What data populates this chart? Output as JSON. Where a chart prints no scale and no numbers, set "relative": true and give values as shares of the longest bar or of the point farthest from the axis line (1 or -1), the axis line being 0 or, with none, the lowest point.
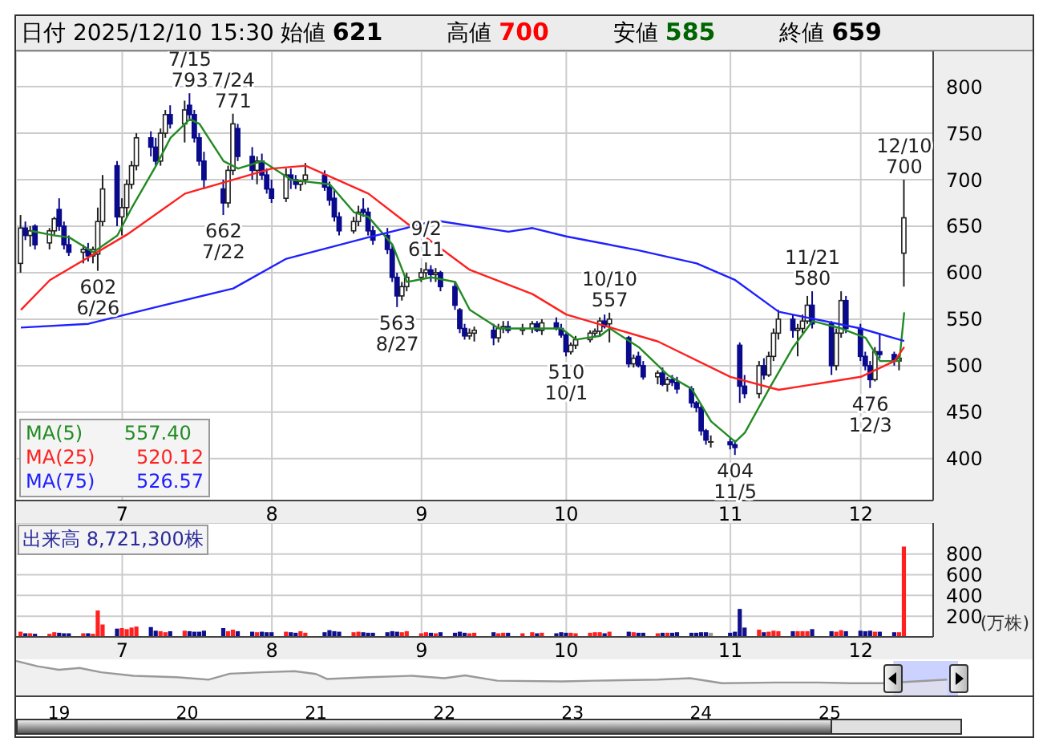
{
  "chart_data": [
    {
      "type": "candlestick",
      "title": "日付 2025/12/10 15:30",
      "legend": "bottom left",
      "grid": true,
      "x": [
        "2025-06-10",
        "2025-06-11",
        "2025-06-12",
        "2025-06-13",
        "2025-06-16",
        "2025-06-17",
        "2025-06-18",
        "2025-06-19",
        "2025-06-20",
        "2025-06-23",
        "2025-06-24",
        "2025-06-25",
        "2025-06-26",
        "2025-06-27",
        "2025-06-30",
        "2025-07-01",
        "2025-07-02",
        "2025-07-03",
        "2025-07-04",
        "2025-07-07",
        "2025-07-08",
        "2025-07-09",
        "2025-07-10",
        "2025-07-11",
        "2025-07-14",
        "2025-07-15",
        "2025-07-16",
        "2025-07-17",
        "2025-07-18",
        "2025-07-22",
        "2025-07-23",
        "2025-07-24",
        "2025-07-25",
        "2025-07-28",
        "2025-07-29",
        "2025-07-30",
        "2025-07-31",
        "2025-08-01",
        "2025-08-04",
        "2025-08-05",
        "2025-08-06",
        "2025-08-07",
        "2025-08-08",
        "2025-08-12",
        "2025-08-13",
        "2025-08-14",
        "2025-08-15",
        "2025-08-18",
        "2025-08-19",
        "2025-08-20",
        "2025-08-21",
        "2025-08-22",
        "2025-08-25",
        "2025-08-26",
        "2025-08-27",
        "2025-08-28",
        "2025-08-29",
        "2025-09-01",
        "2025-09-02",
        "2025-09-03",
        "2025-09-04",
        "2025-09-05",
        "2025-09-08",
        "2025-09-09",
        "2025-09-10",
        "2025-09-11",
        "2025-09-12",
        "2025-09-16",
        "2025-09-17",
        "2025-09-18",
        "2025-09-19",
        "2025-09-22",
        "2025-09-24",
        "2025-09-25",
        "2025-09-26",
        "2025-09-29",
        "2025-09-30",
        "2025-10-01",
        "2025-10-02",
        "2025-10-03",
        "2025-10-06",
        "2025-10-07",
        "2025-10-08",
        "2025-10-09",
        "2025-10-10",
        "2025-10-14",
        "2025-10-15",
        "2025-10-16",
        "2025-10-17",
        "2025-10-20",
        "2025-10-21",
        "2025-10-22",
        "2025-10-23",
        "2025-10-24",
        "2025-10-27",
        "2025-10-28",
        "2025-10-29",
        "2025-10-30",
        "2025-10-31",
        "2025-11-04",
        "2025-11-05",
        "2025-11-06",
        "2025-11-07",
        "2025-11-10",
        "2025-11-11",
        "2025-11-12",
        "2025-11-13",
        "2025-11-14",
        "2025-11-17",
        "2025-11-18",
        "2025-11-19",
        "2025-11-20",
        "2025-11-21",
        "2025-11-25",
        "2025-11-26",
        "2025-11-27",
        "2025-11-28",
        "2025-12-01",
        "2025-12-02",
        "2025-12-03",
        "2025-12-04",
        "2025-12-05",
        "2025-12-08",
        "2025-12-09",
        "2025-12-10"
      ],
      "ohlc": [
        [
          610,
          662,
          600,
          648
        ],
        [
          648,
          655,
          635,
          640
        ],
        [
          640,
          650,
          628,
          645
        ],
        [
          650,
          652,
          625,
          630
        ],
        [
          632,
          648,
          625,
          645
        ],
        [
          645,
          660,
          640,
          658
        ],
        [
          668,
          680,
          645,
          650
        ],
        [
          650,
          655,
          625,
          630
        ],
        [
          630,
          640,
          618,
          622
        ],
        [
          622,
          630,
          610,
          625
        ],
        [
          625,
          632,
          612,
          618
        ],
        [
          618,
          628,
          610,
          625
        ],
        [
          620,
          670,
          602,
          655
        ],
        [
          655,
          705,
          650,
          690
        ],
        [
          715,
          720,
          650,
          660
        ],
        [
          660,
          680,
          640,
          670
        ],
        [
          670,
          700,
          660,
          695
        ],
        [
          695,
          720,
          690,
          715
        ],
        [
          715,
          750,
          710,
          745
        ],
        [
          745,
          752,
          725,
          735
        ],
        [
          735,
          745,
          715,
          720
        ],
        [
          720,
          755,
          715,
          750
        ],
        [
          750,
          775,
          745,
          770
        ],
        [
          770,
          780,
          755,
          760
        ],
        [
          760,
          785,
          740,
          775
        ],
        [
          780,
          793,
          765,
          770
        ],
        [
          770,
          775,
          740,
          745
        ],
        [
          745,
          750,
          715,
          720
        ],
        [
          720,
          730,
          690,
          700
        ],
        [
          690,
          700,
          662,
          675
        ],
        [
          675,
          715,
          670,
          710
        ],
        [
          710,
          771,
          705,
          760
        ],
        [
          755,
          760,
          720,
          725
        ],
        [
          725,
          735,
          700,
          710
        ],
        [
          710,
          725,
          695,
          720
        ],
        [
          720,
          728,
          700,
          705
        ],
        [
          705,
          712,
          685,
          690
        ],
        [
          690,
          700,
          675,
          680
        ],
        [
          680,
          712,
          676,
          705
        ],
        [
          705,
          712,
          690,
          700
        ],
        [
          700,
          705,
          690,
          695
        ],
        [
          695,
          700,
          688,
          698
        ],
        [
          700,
          718,
          695,
          705
        ],
        [
          705,
          710,
          688,
          692
        ],
        [
          692,
          698,
          672,
          678
        ],
        [
          680,
          690,
          655,
          660
        ],
        [
          660,
          665,
          640,
          645
        ],
        [
          645,
          660,
          642,
          655
        ],
        [
          655,
          672,
          650,
          665
        ],
        [
          668,
          680,
          660,
          665
        ],
        [
          665,
          670,
          640,
          645
        ],
        [
          645,
          650,
          630,
          635
        ],
        [
          640,
          648,
          620,
          625
        ],
        [
          625,
          630,
          590,
          595
        ],
        [
          595,
          600,
          563,
          575
        ],
        [
          575,
          590,
          570,
          585
        ],
        [
          585,
          600,
          580,
          595
        ],
        [
          595,
          605,
          590,
          600
        ],
        [
          600,
          611,
          595,
          603
        ],
        [
          603,
          608,
          590,
          598
        ],
        [
          598,
          605,
          590,
          600
        ],
        [
          600,
          602,
          580,
          585
        ],
        [
          585,
          590,
          560,
          565
        ],
        [
          560,
          562,
          535,
          540
        ],
        [
          540,
          545,
          528,
          532
        ],
        [
          532,
          540,
          528,
          535
        ],
        [
          535,
          542,
          526,
          538
        ],
        [
          538,
          545,
          522,
          530
        ],
        [
          530,
          545,
          525,
          540
        ],
        [
          540,
          548,
          535,
          542
        ],
        [
          542,
          548,
          535,
          538
        ],
        [
          538,
          545,
          533,
          540
        ],
        [
          540,
          548,
          535,
          545
        ],
        [
          545,
          548,
          536,
          538
        ],
        [
          538,
          550,
          533,
          546
        ],
        [
          546,
          552,
          538,
          540
        ],
        [
          540,
          545,
          530,
          533
        ],
        [
          533,
          535,
          510,
          515
        ],
        [
          515,
          525,
          512,
          522
        ],
        [
          522,
          532,
          518,
          528
        ],
        [
          528,
          538,
          525,
          535
        ],
        [
          535,
          540,
          530,
          537
        ],
        [
          537,
          552,
          532,
          548
        ],
        [
          548,
          555,
          540,
          542
        ],
        [
          545,
          557,
          525,
          550
        ],
        [
          530,
          532,
          498,
          502
        ],
        [
          502,
          512,
          498,
          508
        ],
        [
          510,
          515,
          498,
          500
        ],
        [
          500,
          505,
          485,
          488
        ],
        [
          488,
          495,
          480,
          492
        ],
        [
          492,
          498,
          478,
          480
        ],
        [
          480,
          488,
          472,
          485
        ],
        [
          485,
          490,
          478,
          482
        ],
        [
          482,
          488,
          470,
          475
        ],
        [
          475,
          478,
          455,
          460
        ],
        [
          460,
          462,
          450,
          455
        ],
        [
          455,
          458,
          425,
          430
        ],
        [
          430,
          432,
          415,
          420
        ],
        [
          418,
          425,
          412,
          418
        ],
        [
          418,
          422,
          410,
          415
        ],
        [
          415,
          420,
          404,
          412
        ],
        [
          522,
          525,
          460,
          478
        ],
        [
          478,
          490,
          465,
          470
        ],
        [
          470,
          505,
          465,
          500
        ],
        [
          500,
          508,
          485,
          490
        ],
        [
          490,
          515,
          488,
          510
        ],
        [
          510,
          540,
          505,
          535
        ],
        [
          535,
          560,
          528,
          550
        ],
        [
          550,
          555,
          530,
          538
        ],
        [
          538,
          545,
          510,
          540
        ],
        [
          540,
          555,
          535,
          548
        ],
        [
          548,
          575,
          545,
          565
        ],
        [
          565,
          580,
          540,
          545
        ],
        [
          545,
          548,
          490,
          500
        ],
        [
          500,
          540,
          495,
          535
        ],
        [
          535,
          580,
          530,
          570
        ],
        [
          570,
          575,
          535,
          540
        ],
        [
          540,
          545,
          505,
          510
        ],
        [
          510,
          515,
          495,
          500
        ],
        [
          500,
          505,
          476,
          485
        ],
        [
          485,
          520,
          483,
          515
        ],
        [
          515,
          535,
          508,
          512
        ],
        [
          512,
          515,
          500,
          505
        ],
        [
          505,
          512,
          495,
          508
        ],
        [
          621,
          700,
          585,
          659
        ]
      ],
      "series": [
        {
          "name": "MA(5) 557.40",
          "type": "line",
          "color": "#228b22",
          "x": [
            "2025-06-12",
            "2025-06-17",
            "2025-06-20",
            "2025-06-25",
            "2025-06-30",
            "2025-07-03",
            "2025-07-08",
            "2025-07-11",
            "2025-07-15",
            "2025-07-17",
            "2025-07-22",
            "2025-07-25",
            "2025-07-30",
            "2025-08-05",
            "2025-08-08",
            "2025-08-13",
            "2025-08-18",
            "2025-08-21",
            "2025-08-26",
            "2025-08-29",
            "2025-09-03",
            "2025-09-08",
            "2025-09-11",
            "2025-09-17",
            "2025-09-24",
            "2025-09-30",
            "2025-10-03",
            "2025-10-08",
            "2025-10-10",
            "2025-10-16",
            "2025-10-22",
            "2025-10-27",
            "2025-10-31",
            "2025-11-05",
            "2025-11-07",
            "2025-11-12",
            "2025-11-17",
            "2025-11-21",
            "2025-11-27",
            "2025-12-02",
            "2025-12-05",
            "2025-12-09",
            "2025-12-10"
          ],
          "values": [
            645,
            640,
            638,
            622,
            640,
            670,
            715,
            745,
            765,
            760,
            720,
            712,
            720,
            700,
            698,
            695,
            665,
            660,
            630,
            590,
            595,
            590,
            560,
            540,
            540,
            540,
            528,
            532,
            540,
            520,
            490,
            475,
            440,
            418,
            428,
            475,
            520,
            548,
            540,
            530,
            505,
            505,
            557.4
          ]
        },
        {
          "name": "MA(25) 520.12",
          "type": "line",
          "color": "#ff2020",
          "x": [
            "2025-06-10",
            "2025-06-16",
            "2025-07-02",
            "2025-07-14",
            "2025-08-01",
            "2025-08-08",
            "2025-08-21",
            "2025-08-29",
            "2025-09-11",
            "2025-09-24",
            "2025-10-01",
            "2025-10-20",
            "2025-11-04",
            "2025-11-14",
            "2025-12-01",
            "2025-12-08",
            "2025-12-10"
          ],
          "values": [
            560,
            592,
            641,
            685,
            712,
            715,
            685,
            653,
            603,
            577,
            555,
            526,
            488,
            474,
            488,
            505,
            520.12
          ]
        },
        {
          "name": "MA(75) 526.57",
          "type": "line",
          "color": "#2020ff",
          "x": [
            "2025-06-10",
            "2025-06-24",
            "2025-07-08",
            "2025-07-24",
            "2025-08-04",
            "2025-08-21",
            "2025-09-04",
            "2025-09-19",
            "2025-09-24",
            "2025-10-01",
            "2025-10-16",
            "2025-10-28",
            "2025-11-05",
            "2025-11-14",
            "2025-12-01",
            "2025-12-10"
          ],
          "values": [
            541,
            545,
            563,
            583,
            615,
            638,
            656,
            644,
            648,
            639,
            624,
            610,
            592,
            558,
            540,
            526.57
          ]
        }
      ],
      "xlim": [
        "2025-06-09",
        "2025-12-16"
      ],
      "xticks": [
        {
          "value": "2025-07-01",
          "label": "7"
        },
        {
          "value": "2025-08-01",
          "label": "8"
        },
        {
          "value": "2025-09-01",
          "label": "9"
        },
        {
          "value": "2025-10-01",
          "label": "10"
        },
        {
          "value": "2025-11-04",
          "label": "11"
        },
        {
          "value": "2025-12-01",
          "label": "12"
        }
      ],
      "ylim": [
        355,
        838
      ],
      "yticks": [
        400,
        450,
        500,
        550,
        600,
        650,
        700,
        750,
        800
      ],
      "annotations": [
        "始値 621",
        "高値 700",
        "安値 585",
        "終値 659",
        {
          "text": "7/15\n793",
          "x": "2025-07-15",
          "y": 793
        },
        {
          "text": "7/24\n771",
          "x": "2025-07-24",
          "y": 771
        },
        {
          "text": "662\n7/22",
          "x": "2025-07-22",
          "y": 662
        },
        {
          "text": "602\n6/26",
          "x": "2025-06-26",
          "y": 602
        },
        {
          "text": "9/2\n611",
          "x": "2025-09-02",
          "y": 611
        },
        {
          "text": "563\n8/27",
          "x": "2025-08-27",
          "y": 563
        },
        {
          "text": "10/10\n557",
          "x": "2025-10-10",
          "y": 557
        },
        {
          "text": "510\n10/1",
          "x": "2025-10-01",
          "y": 510
        },
        {
          "text": "404\n11/5",
          "x": "2025-11-05",
          "y": 404
        },
        {
          "text": "11/21\n580",
          "x": "2025-11-21",
          "y": 580
        },
        {
          "text": "476\n12/3",
          "x": "2025-12-03",
          "y": 476
        },
        {
          "text": "12/10\n700",
          "x": "2025-12-10",
          "y": 700
        }
      ]
    },
    {
      "type": "bar",
      "title": "出来高 8,721,300株",
      "ylabel": "(万株)",
      "grid": true,
      "x": [
        "2025-06-10",
        "2025-06-11",
        "2025-06-12",
        "2025-06-13",
        "2025-06-16",
        "2025-06-17",
        "2025-06-18",
        "2025-06-19",
        "2025-06-20",
        "2025-06-23",
        "2025-06-24",
        "2025-06-25",
        "2025-06-26",
        "2025-06-27",
        "2025-06-30",
        "2025-07-01",
        "2025-07-02",
        "2025-07-03",
        "2025-07-04",
        "2025-07-07",
        "2025-07-08",
        "2025-07-09",
        "2025-07-10",
        "2025-07-11",
        "2025-07-14",
        "2025-07-15",
        "2025-07-16",
        "2025-07-17",
        "2025-07-18",
        "2025-07-22",
        "2025-07-23",
        "2025-07-24",
        "2025-07-25",
        "2025-07-28",
        "2025-07-29",
        "2025-07-30",
        "2025-07-31",
        "2025-08-01",
        "2025-08-04",
        "2025-08-05",
        "2025-08-06",
        "2025-08-07",
        "2025-08-08",
        "2025-08-12",
        "2025-08-13",
        "2025-08-14",
        "2025-08-15",
        "2025-08-18",
        "2025-08-19",
        "2025-08-20",
        "2025-08-21",
        "2025-08-22",
        "2025-08-25",
        "2025-08-26",
        "2025-08-27",
        "2025-08-28",
        "2025-08-29",
        "2025-09-01",
        "2025-09-02",
        "2025-09-03",
        "2025-09-04",
        "2025-09-05",
        "2025-09-08",
        "2025-09-09",
        "2025-09-10",
        "2025-09-11",
        "2025-09-12",
        "2025-09-16",
        "2025-09-17",
        "2025-09-18",
        "2025-09-19",
        "2025-09-22",
        "2025-09-24",
        "2025-09-25",
        "2025-09-26",
        "2025-09-29",
        "2025-09-30",
        "2025-10-01",
        "2025-10-02",
        "2025-10-03",
        "2025-10-06",
        "2025-10-07",
        "2025-10-08",
        "2025-10-09",
        "2025-10-10",
        "2025-10-14",
        "2025-10-15",
        "2025-10-16",
        "2025-10-17",
        "2025-10-20",
        "2025-10-21",
        "2025-10-22",
        "2025-10-23",
        "2025-10-24",
        "2025-10-27",
        "2025-10-28",
        "2025-10-29",
        "2025-10-30",
        "2025-10-31",
        "2025-11-04",
        "2025-11-05",
        "2025-11-06",
        "2025-11-07",
        "2025-11-10",
        "2025-11-11",
        "2025-11-12",
        "2025-11-13",
        "2025-11-14",
        "2025-11-17",
        "2025-11-18",
        "2025-11-19",
        "2025-11-20",
        "2025-11-21",
        "2025-11-25",
        "2025-11-26",
        "2025-11-27",
        "2025-11-28",
        "2025-12-01",
        "2025-12-02",
        "2025-12-03",
        "2025-12-04",
        "2025-12-05",
        "2025-12-08",
        "2025-12-09",
        "2025-12-10"
      ],
      "values": [
        50,
        35,
        35,
        30,
        30,
        45,
        40,
        35,
        35,
        35,
        35,
        30,
        255,
        120,
        80,
        85,
        75,
        90,
        100,
        95,
        60,
        55,
        45,
        55,
        60,
        55,
        50,
        50,
        60,
        85,
        55,
        70,
        55,
        50,
        45,
        50,
        45,
        45,
        50,
        45,
        40,
        55,
        40,
        45,
        65,
        55,
        50,
        45,
        50,
        45,
        40,
        40,
        45,
        55,
        50,
        45,
        55,
        35,
        45,
        40,
        35,
        45,
        40,
        50,
        40,
        35,
        40,
        45,
        35,
        40,
        40,
        35,
        45,
        35,
        40,
        35,
        45,
        40,
        40,
        35,
        40,
        45,
        45,
        35,
        50,
        50,
        45,
        40,
        40,
        35,
        40,
        40,
        40,
        45,
        40,
        40,
        45,
        45,
        40,
        40,
        50,
        270,
        90,
        70,
        45,
        50,
        60,
        55,
        55,
        55,
        55,
        55,
        75,
        55,
        50,
        65,
        55,
        60,
        55,
        60,
        50,
        50,
        45,
        45,
        872.13
      ],
      "colors": [
        "#ff2020",
        "#10108c",
        "#ff2020",
        "#10108c",
        "#ff2020",
        "#ff2020",
        "#10108c",
        "#10108c",
        "#10108c",
        "#ff2020",
        "#10108c",
        "#ff2020",
        "#ff2020",
        "#ff2020",
        "#10108c",
        "#ff2020",
        "#ff2020",
        "#ff2020",
        "#ff2020",
        "#10108c",
        "#10108c",
        "#ff2020",
        "#ff2020",
        "#10108c",
        "#ff2020",
        "#10108c",
        "#10108c",
        "#10108c",
        "#10108c",
        "#10108c",
        "#ff2020",
        "#ff2020",
        "#10108c",
        "#10108c",
        "#ff2020",
        "#10108c",
        "#10108c",
        "#10108c",
        "#ff2020",
        "#10108c",
        "#10108c",
        "#ff2020",
        "#ff2020",
        "#10108c",
        "#10108c",
        "#10108c",
        "#10108c",
        "#ff2020",
        "#ff2020",
        "#10108c",
        "#10108c",
        "#10108c",
        "#10108c",
        "#10108c",
        "#10108c",
        "#ff2020",
        "#ff2020",
        "#ff2020",
        "#ff2020",
        "#10108c",
        "#ff2020",
        "#10108c",
        "#10108c",
        "#10108c",
        "#10108c",
        "#ff2020",
        "#ff2020",
        "#10108c",
        "#ff2020",
        "#ff2020",
        "#10108c",
        "#ff2020",
        "#ff2020",
        "#10108c",
        "#ff2020",
        "#10108c",
        "#10108c",
        "#10108c",
        "#ff2020",
        "#ff2020",
        "#ff2020",
        "#ff2020",
        "#ff2020",
        "#10108c",
        "#ff2020",
        "#10108c",
        "#ff2020",
        "#10108c",
        "#10108c",
        "#ff2020",
        "#10108c",
        "#ff2020",
        "#10108c",
        "#10108c",
        "#10108c",
        "#10108c",
        "#10108c",
        "#10108c",
        "#999999",
        "#10108c",
        "#10108c",
        "#10108c",
        "#10108c",
        "#ff2020",
        "#10108c",
        "#ff2020",
        "#ff2020",
        "#ff2020",
        "#10108c",
        "#ff2020",
        "#ff2020",
        "#ff2020",
        "#10108c",
        "#10108c",
        "#ff2020",
        "#ff2020",
        "#10108c",
        "#10108c",
        "#10108c",
        "#10108c",
        "#ff2020",
        "#10108c",
        "#10108c",
        "#ff2020",
        "#ff2020"
      ],
      "xlim": [
        "2025-06-09",
        "2025-12-16"
      ],
      "xticks": [
        {
          "value": "2025-07-01",
          "label": "7"
        },
        {
          "value": "2025-08-01",
          "label": "8"
        },
        {
          "value": "2025-09-01",
          "label": "9"
        },
        {
          "value": "2025-10-01",
          "label": "10"
        },
        {
          "value": "2025-11-04",
          "label": "11"
        },
        {
          "value": "2025-12-01",
          "label": "12"
        }
      ],
      "ylim": [
        0,
        1100
      ],
      "yticks": [
        200,
        400,
        600,
        800
      ]
    },
    {
      "type": "area",
      "relative": true,
      "color": "#999999",
      "tick_labels": "x",
      "x": [
        "2018-09",
        "2018-11",
        "2019-01",
        "2019-03",
        "2019-05",
        "2019-08",
        "2019-12",
        "2020-03",
        "2020-05",
        "2020-08",
        "2020-11",
        "2021-01",
        "2021-02",
        "2021-06",
        "2021-10",
        "2022-01",
        "2022-03",
        "2022-06",
        "2022-12",
        "2023-03",
        "2023-09",
        "2023-12",
        "2024-03",
        "2024-08",
        "2024-12",
        "2025-03",
        "2025-06",
        "2025-12"
      ],
      "values": [
        1,
        0.85,
        0.75,
        0.8,
        0.68,
        0.58,
        0.54,
        0.47,
        0.64,
        0.68,
        0.71,
        0.63,
        0.49,
        0.54,
        0.58,
        0.51,
        0.59,
        0.44,
        0.42,
        0.44,
        0.47,
        0.51,
        0.37,
        0.39,
        0.39,
        0.37,
        0.37,
        0.47
      ],
      "xlim": [
        "2018-09",
        "2026-08"
      ],
      "xticks": [
        {
          "value": "2019",
          "label": "19"
        },
        {
          "value": "2020",
          "label": "20"
        },
        {
          "value": "2021",
          "label": "21"
        },
        {
          "value": "2022",
          "label": "22"
        },
        {
          "value": "2023",
          "label": "23"
        },
        {
          "value": "2024",
          "label": "24"
        },
        {
          "value": "2025",
          "label": "25"
        }
      ],
      "bands": [
        {
          "axis": "x",
          "from": "2025-07",
          "to": "2026-01",
          "color": "#aab4ff"
        }
      ]
    }
  ]
}
